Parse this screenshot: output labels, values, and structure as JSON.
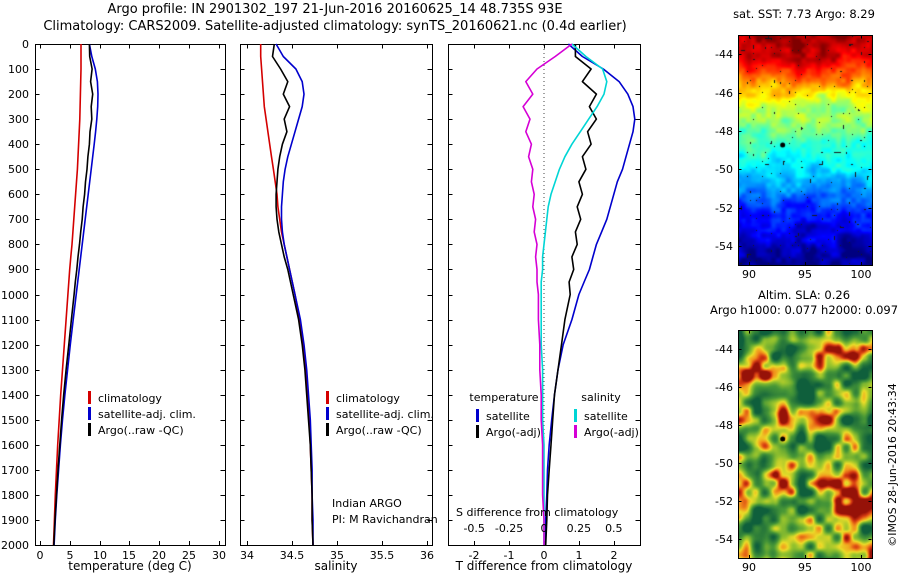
{
  "titles": {
    "line1": "Argo profile: IN 2901302_197 21-Jun-2016 20160625_14 48.735S 93E",
    "line2": "Climatology: CARS2009. Satellite-adjusted climatology: synTS_20160621.nc (0.4d earlier)"
  },
  "annotations": {
    "program": "Indian ARGO",
    "pi": "PI: M Ravichandran"
  },
  "credit": "©IMOS 28-Jun-2016 20:43:34",
  "colors": {
    "climatology": "#d40000",
    "satellite_clim": "#0000cd",
    "argo": "#000000",
    "sal_satellite": "#00d5d5",
    "sal_argo": "#d500d5",
    "background": "#ffffff"
  },
  "chart_data": [
    {
      "type": "line",
      "panel": "temperature-profile",
      "xlabel": "temperature (deg C)",
      "xlim": [
        -0.8,
        31
      ],
      "xticks": [
        0,
        5,
        10,
        15,
        20,
        25,
        30
      ],
      "ylim": [
        2000,
        0
      ],
      "yticks": [
        0,
        100,
        200,
        300,
        400,
        500,
        600,
        700,
        800,
        900,
        1000,
        1100,
        1200,
        1300,
        1400,
        1500,
        1600,
        1700,
        1800,
        1900,
        2000
      ],
      "depths": [
        0,
        50,
        100,
        150,
        200,
        250,
        300,
        350,
        400,
        450,
        500,
        550,
        600,
        650,
        700,
        750,
        800,
        850,
        900,
        950,
        1000,
        1100,
        1200,
        1300,
        1400,
        1500,
        1600,
        1700,
        1800,
        1900,
        2000
      ],
      "series": [
        {
          "name": "climatology",
          "color": "#d40000",
          "values": [
            6.9,
            6.9,
            6.9,
            6.85,
            6.8,
            6.75,
            6.7,
            6.6,
            6.5,
            6.4,
            6.3,
            6.15,
            6.0,
            5.85,
            5.7,
            5.55,
            5.4,
            5.2,
            5.0,
            4.85,
            4.7,
            4.4,
            4.1,
            3.8,
            3.5,
            3.25,
            3.0,
            2.8,
            2.6,
            2.45,
            2.3
          ]
        },
        {
          "name": "satellite-adj. clim.",
          "color": "#0000cd",
          "values": [
            8.3,
            8.7,
            9.3,
            9.65,
            9.75,
            9.7,
            9.55,
            9.35,
            9.1,
            8.85,
            8.6,
            8.35,
            8.1,
            7.85,
            7.6,
            7.35,
            7.1,
            6.85,
            6.6,
            6.35,
            6.1,
            5.6,
            5.1,
            4.65,
            4.2,
            3.8,
            3.45,
            3.15,
            2.85,
            2.6,
            2.4
          ]
        },
        {
          "name": "Argo(..raw -QC)",
          "color": "#000000",
          "values": [
            8.3,
            8.35,
            8.75,
            8.5,
            8.85,
            8.6,
            8.7,
            8.4,
            8.3,
            8.05,
            7.9,
            7.65,
            7.5,
            7.25,
            7.1,
            6.85,
            6.65,
            6.4,
            6.2,
            5.95,
            5.75,
            5.3,
            4.85,
            4.4,
            4.0,
            3.65,
            3.35,
            3.05,
            2.8,
            2.55,
            2.35
          ]
        }
      ]
    },
    {
      "type": "line",
      "panel": "salinity-profile",
      "xlabel": "salinity",
      "xlim": [
        33.92,
        36.05
      ],
      "xticks": [
        34,
        34.5,
        35,
        35.5,
        36
      ],
      "ylim": [
        2000,
        0
      ],
      "yticks": [
        0,
        100,
        200,
        300,
        400,
        500,
        600,
        700,
        800,
        900,
        1000,
        1100,
        1200,
        1300,
        1400,
        1500,
        1600,
        1700,
        1800,
        1900,
        2000
      ],
      "depths": [
        0,
        50,
        100,
        150,
        200,
        250,
        300,
        350,
        400,
        450,
        500,
        550,
        600,
        650,
        700,
        750,
        800,
        850,
        900,
        950,
        1000,
        1100,
        1200,
        1300,
        1400,
        1500,
        1600,
        1700,
        1800,
        1900,
        2000
      ],
      "series": [
        {
          "name": "climatology",
          "color": "#d40000",
          "values": [
            34.15,
            34.15,
            34.16,
            34.17,
            34.18,
            34.19,
            34.21,
            34.23,
            34.25,
            34.27,
            34.29,
            34.31,
            34.33,
            34.34,
            34.36,
            34.38,
            34.41,
            34.44,
            34.47,
            34.5,
            34.53,
            34.58,
            34.62,
            34.65,
            34.67,
            34.69,
            34.7,
            34.71,
            34.72,
            34.72,
            34.73
          ]
        },
        {
          "name": "satellite-adj. clim.",
          "color": "#0000cd",
          "values": [
            34.32,
            34.4,
            34.54,
            34.61,
            34.63,
            34.61,
            34.57,
            34.53,
            34.49,
            34.45,
            34.42,
            34.4,
            34.39,
            34.38,
            34.38,
            34.39,
            34.41,
            34.44,
            34.47,
            34.5,
            34.53,
            34.59,
            34.63,
            34.66,
            34.68,
            34.7,
            34.71,
            34.72,
            34.72,
            34.73,
            34.73
          ]
        },
        {
          "name": "Argo(..raw -QC)",
          "color": "#000000",
          "values": [
            34.3,
            34.28,
            34.37,
            34.45,
            34.4,
            34.47,
            34.41,
            34.44,
            34.39,
            34.36,
            34.34,
            34.33,
            34.32,
            34.32,
            34.33,
            34.35,
            34.38,
            34.41,
            34.45,
            34.48,
            34.51,
            34.57,
            34.61,
            34.64,
            34.66,
            34.68,
            34.7,
            34.71,
            34.72,
            34.72,
            34.73
          ]
        }
      ]
    },
    {
      "type": "line",
      "panel": "difference-profile",
      "xlabel": "T difference from climatology",
      "xlim": [
        -2.75,
        2.75
      ],
      "xticks": [
        -2,
        -1,
        0,
        1,
        2
      ],
      "ylim": [
        2000,
        0
      ],
      "yticks": [
        0,
        100,
        200,
        300,
        400,
        500,
        600,
        700,
        800,
        900,
        1000,
        1100,
        1200,
        1300,
        1400,
        1500,
        1600,
        1700,
        1800,
        1900,
        2000
      ],
      "zero_line": true,
      "s_axis": {
        "label": "S difference from climatology",
        "ticks": [
          -0.5,
          -0.25,
          0,
          0.25,
          0.5
        ],
        "scale": 4
      },
      "legend": {
        "groups": [
          "temperature",
          "salinity"
        ]
      },
      "depths": [
        0,
        50,
        100,
        150,
        200,
        250,
        300,
        350,
        400,
        450,
        500,
        550,
        600,
        650,
        700,
        750,
        800,
        850,
        900,
        950,
        1000,
        1100,
        1200,
        1300,
        1400,
        1500,
        1600,
        1700,
        1800,
        1900,
        2000
      ],
      "series": [
        {
          "name": "satellite",
          "group": "temperature",
          "color": "#0000cd",
          "scale": 1,
          "values": [
            0.7,
            1.1,
            1.7,
            2.15,
            2.4,
            2.55,
            2.6,
            2.55,
            2.45,
            2.35,
            2.25,
            2.1,
            2.0,
            1.9,
            1.8,
            1.65,
            1.5,
            1.4,
            1.3,
            1.15,
            1.0,
            0.8,
            0.55,
            0.4,
            0.3,
            0.22,
            0.15,
            0.1,
            0.08,
            0.05,
            0.05
          ]
        },
        {
          "name": "Argo(-adj)",
          "group": "temperature",
          "color": "#000000",
          "scale": 1,
          "values": [
            0.9,
            0.9,
            1.35,
            1.1,
            1.5,
            1.3,
            1.5,
            1.25,
            1.35,
            1.1,
            1.2,
            1.0,
            1.1,
            0.95,
            1.05,
            0.9,
            0.95,
            0.8,
            0.85,
            0.72,
            0.75,
            0.6,
            0.5,
            0.4,
            0.3,
            0.25,
            0.2,
            0.15,
            0.1,
            0.08,
            0.05
          ]
        },
        {
          "name": "satellite",
          "group": "salinity",
          "color": "#00d5d5",
          "scale": 4,
          "values": [
            0.2,
            0.3,
            0.42,
            0.45,
            0.43,
            0.38,
            0.32,
            0.26,
            0.2,
            0.15,
            0.11,
            0.08,
            0.05,
            0.03,
            0.02,
            0.01,
            0.0,
            -0.01,
            -0.01,
            -0.02,
            -0.02,
            -0.02,
            -0.02,
            -0.01,
            -0.01,
            -0.01,
            0.0,
            0.0,
            0.0,
            0.0,
            0.0
          ]
        },
        {
          "name": "Argo(-adj)",
          "group": "salinity",
          "color": "#d500d5",
          "scale": 4,
          "values": [
            0.2,
            0.08,
            -0.05,
            -0.13,
            -0.08,
            -0.15,
            -0.1,
            -0.13,
            -0.09,
            -0.11,
            -0.08,
            -0.09,
            -0.07,
            -0.08,
            -0.06,
            -0.07,
            -0.05,
            -0.06,
            -0.05,
            -0.05,
            -0.04,
            -0.04,
            -0.03,
            -0.03,
            -0.02,
            -0.02,
            -0.01,
            -0.01,
            -0.01,
            0.0,
            0.0
          ]
        }
      ]
    },
    {
      "type": "heatmap",
      "panel": "sst-map",
      "title": "sat. SST: 7.73 Argo: 8.29",
      "lon_range": [
        89,
        101
      ],
      "lat_range": [
        -55,
        -43
      ],
      "xticks": [
        90,
        95,
        100
      ],
      "yticks": [
        -44,
        -46,
        -48,
        -50,
        -52,
        -54
      ],
      "lat_row_values": [
        16.8,
        16.2,
        14.5,
        12.0,
        10.5,
        9.5,
        8.8,
        7.8,
        6.5,
        5.2,
        4.3,
        3.6,
        3.2
      ],
      "value_range": [
        2.8,
        17.2
      ],
      "noise_amp": 1.4,
      "colormap": "jet",
      "seed": 7,
      "float_marker": {
        "lon": 93,
        "lat": -48.735
      }
    },
    {
      "type": "heatmap",
      "panel": "sla-map",
      "title_lines": [
        "Altim. SLA: 0.26",
        "Argo h1000: 0.077 h2000: 0.097"
      ],
      "lon_range": [
        89,
        101
      ],
      "lat_range": [
        -55,
        -43
      ],
      "xticks": [
        90,
        95,
        100
      ],
      "yticks": [
        -44,
        -46,
        -48,
        -50,
        -52,
        -54
      ],
      "colormap": "green-yellow-red",
      "seed": 29,
      "float_marker": {
        "lon": 93,
        "lat": -48.735
      }
    }
  ]
}
